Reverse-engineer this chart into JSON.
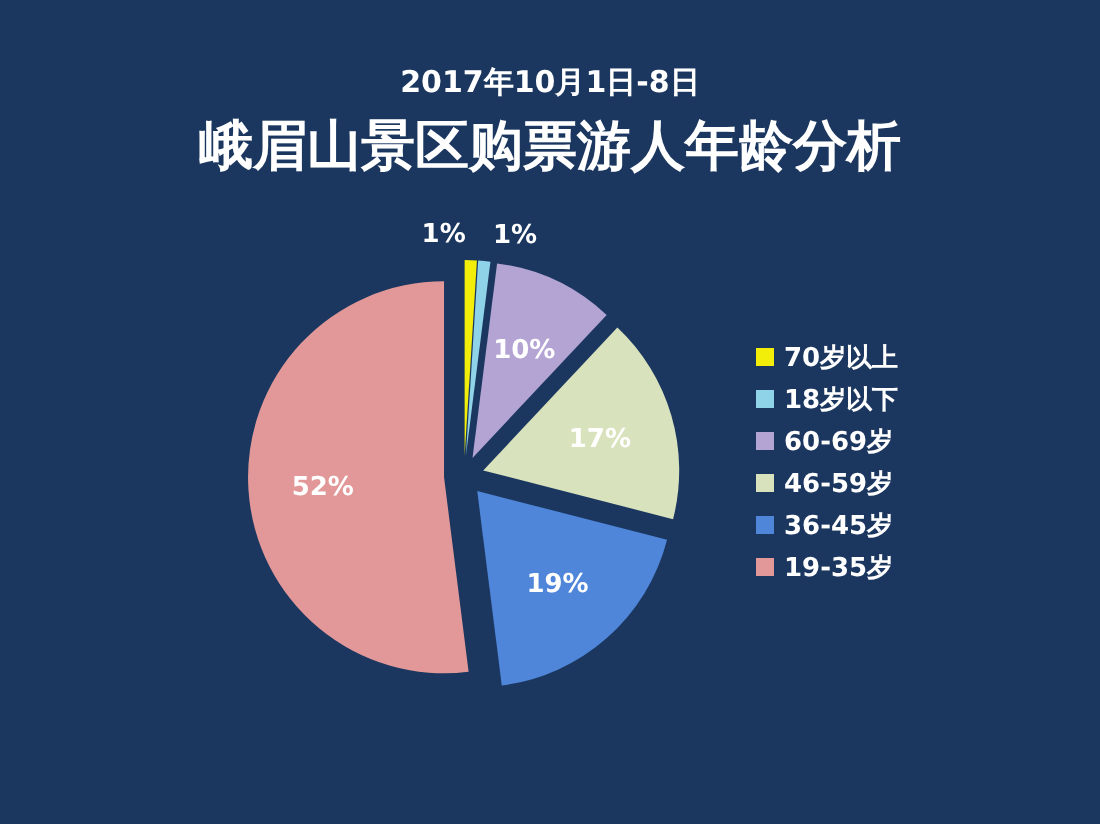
{
  "chart_data": {
    "type": "pie",
    "subtitle": "2017年10月1日-8日",
    "title": "峨眉山景区购票游人年龄分析",
    "categories": [
      "70岁以上",
      "18岁以下",
      "60-69岁",
      "46-59岁",
      "36-45岁",
      "19-35岁"
    ],
    "values": [
      1,
      1,
      10,
      17,
      19,
      52
    ],
    "value_labels": [
      "1%",
      "1%",
      "10%",
      "17%",
      "19%",
      "52%"
    ],
    "colors": [
      "#f2ee0a",
      "#8fd3e8",
      "#b3a4d3",
      "#d8e3bd",
      "#4f86d9",
      "#e29898"
    ],
    "legend": "right"
  }
}
